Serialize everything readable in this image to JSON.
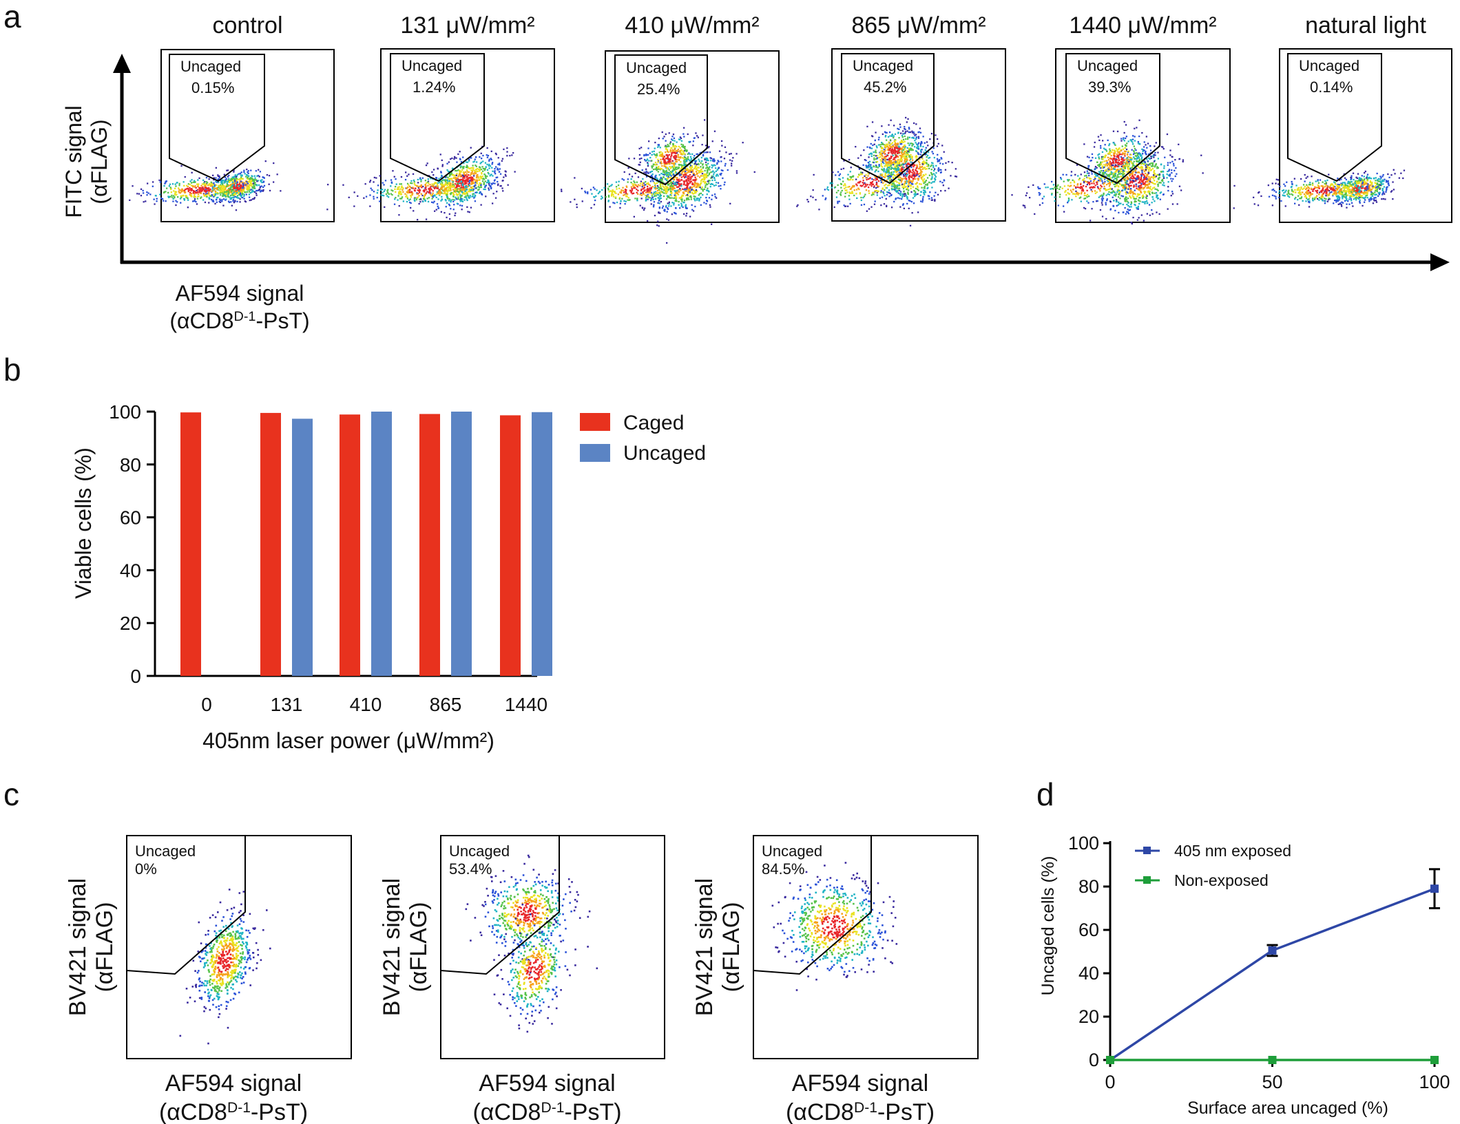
{
  "panels": {
    "a": "a",
    "b": "b",
    "c": "c",
    "d": "d"
  },
  "panel_a": {
    "y_axis_label": [
      "FITC signal",
      "(αFLAG)"
    ],
    "x_axis_label": [
      "AF594 signal",
      "(αCD8D-1-PsT)"
    ],
    "gate_name": "Uncaged",
    "plots": [
      {
        "title": "control",
        "pct": "0.15%"
      },
      {
        "title": "131 μW/mm²",
        "pct": "1.24%"
      },
      {
        "title": "410 μW/mm²",
        "pct": "25.4%"
      },
      {
        "title": "865 μW/mm²",
        "pct": "45.2%"
      },
      {
        "title": "1440 μW/mm²",
        "pct": "39.3%"
      },
      {
        "title": "natural light",
        "pct": "0.14%"
      }
    ]
  },
  "panel_c": {
    "y_label": [
      "BV421 signal",
      "(αFLAG)"
    ],
    "x_label": [
      "AF594 signal",
      "(αCD8D-1-PsT)"
    ],
    "gate_name": "Uncaged",
    "plots": [
      {
        "pct": "0%"
      },
      {
        "pct": "53.4%"
      },
      {
        "pct": "84.5%"
      }
    ]
  },
  "chart_data": [
    {
      "panel": "b",
      "type": "bar",
      "categories": [
        "0",
        "131",
        "410",
        "865",
        "1440"
      ],
      "series": [
        {
          "name": "Caged",
          "color": "#e8321e",
          "values": [
            99.7,
            99.5,
            98.9,
            99.1,
            98.6
          ]
        },
        {
          "name": "Uncaged",
          "color": "#5b84c4",
          "values": [
            null,
            97.3,
            100,
            100,
            99.8
          ]
        }
      ],
      "xlabel": "405nm laser power (μW/mm²)",
      "ylabel": "Viable cells (%)",
      "ylim": [
        0,
        100
      ],
      "yticks": [
        0,
        20,
        40,
        60,
        80,
        100
      ],
      "legend_position": "top-right",
      "grid": false
    },
    {
      "panel": "d",
      "type": "line",
      "x": [
        0,
        50,
        100
      ],
      "series": [
        {
          "name": "405 nm exposed",
          "color": "#2e47a6",
          "values": [
            0,
            50.5,
            79
          ],
          "errors": [
            0,
            2.5,
            9
          ]
        },
        {
          "name": "Non-exposed",
          "color": "#1e9e3a",
          "values": [
            0,
            0,
            0
          ],
          "errors": [
            0,
            0,
            0
          ]
        }
      ],
      "xlabel": "Surface area uncaged (%)",
      "ylabel": "Uncaged cells (%)",
      "xlim": [
        0,
        100
      ],
      "ylim": [
        0,
        100
      ],
      "xticks": [
        0,
        50,
        100
      ],
      "yticks": [
        0,
        20,
        40,
        60,
        80,
        100
      ],
      "legend_position": "top-left",
      "grid": false
    }
  ]
}
